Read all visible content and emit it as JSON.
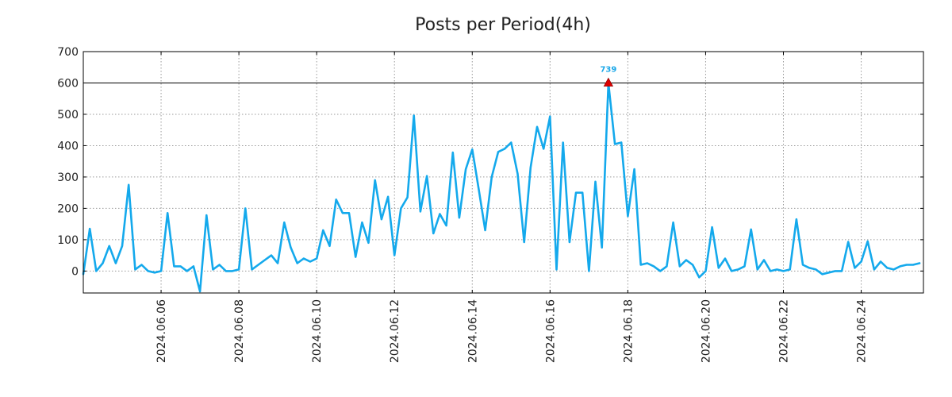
{
  "chart_data": {
    "type": "line",
    "title": "Posts per Period(4h)",
    "xlabel": "",
    "ylabel": "",
    "ylim": [
      -70,
      700
    ],
    "xlim": [
      0,
      21.6
    ],
    "grid": true,
    "x_origin_date": "2024.06.04",
    "x_unit": "days since 2024.06.04",
    "y_ticks": [
      0,
      100,
      200,
      300,
      400,
      500,
      600,
      700
    ],
    "y_tick_labels": [
      "0",
      "100",
      "200",
      "300",
      "400",
      "500",
      "600",
      "700"
    ],
    "x_ticks": [
      2,
      4,
      6,
      8,
      10,
      12,
      14,
      16,
      18,
      20
    ],
    "x_tick_labels": [
      "2024.06.06",
      "2024.06.08",
      "2024.06.10",
      "2024.06.12",
      "2024.06.14",
      "2024.06.16",
      "2024.06.18",
      "2024.06.20",
      "2024.06.22",
      "2024.06.24"
    ],
    "reference_line": {
      "y": 600,
      "color": "#000000"
    },
    "peak_marker": {
      "x": 13.5,
      "y": 600,
      "label": "739",
      "marker_color": "#dd0000",
      "label_color": "#1aa7e8"
    },
    "series": [
      {
        "name": "posts",
        "color": "#14a9ec",
        "x_start": 0,
        "x_step": 0.16667,
        "values": [
          -10,
          135,
          0,
          25,
          80,
          25,
          80,
          275,
          5,
          20,
          0,
          -5,
          0,
          185,
          15,
          15,
          0,
          15,
          -65,
          178,
          5,
          20,
          0,
          0,
          5,
          200,
          5,
          20,
          35,
          50,
          25,
          155,
          75,
          25,
          40,
          30,
          40,
          130,
          80,
          228,
          185,
          185,
          45,
          155,
          90,
          290,
          165,
          237,
          50,
          200,
          235,
          496,
          190,
          303,
          120,
          182,
          145,
          378,
          170,
          325,
          388,
          260,
          130,
          300,
          380,
          390,
          410,
          310,
          92,
          330,
          460,
          390,
          493,
          5,
          410,
          92,
          250,
          250,
          0,
          285,
          75,
          600,
          405,
          410,
          175,
          325,
          20,
          25,
          15,
          0,
          15,
          155,
          15,
          35,
          20,
          -20,
          0,
          140,
          10,
          40,
          0,
          5,
          15,
          133,
          5,
          35,
          0,
          5,
          0,
          5,
          165,
          20,
          10,
          5,
          -10,
          -5,
          0,
          0,
          93,
          10,
          30,
          95,
          5,
          30,
          10,
          5,
          15,
          20,
          20,
          25
        ]
      }
    ]
  }
}
